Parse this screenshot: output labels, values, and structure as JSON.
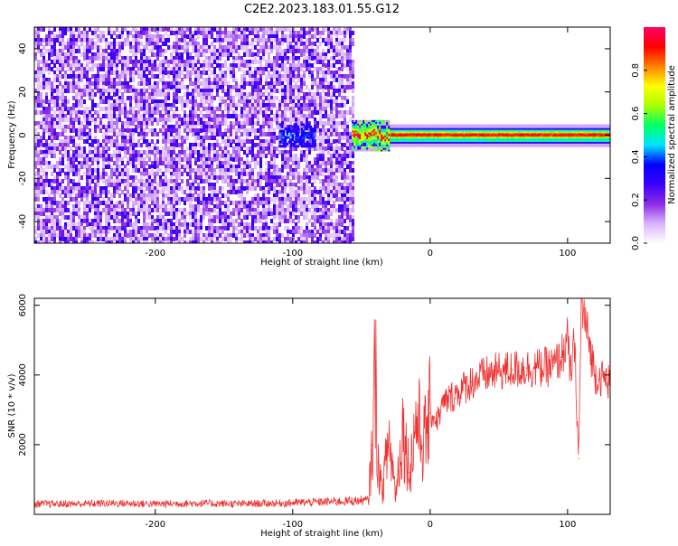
{
  "figure": {
    "title": "C2E2.2023.183.01.55.G12"
  },
  "chart_data": [
    {
      "type": "heatmap",
      "title": "C2E2.2023.183.01.55.G12",
      "xlabel": "Height of straight line (km)",
      "ylabel": "Frequency (Hz)",
      "xlim": [
        -288,
        131
      ],
      "ylim": [
        -50,
        50
      ],
      "x_ticks": [
        -200,
        -100,
        0,
        100
      ],
      "y_ticks": [
        -40,
        -20,
        0,
        20,
        40
      ],
      "colorbar": {
        "label": "Normalized spectral amplitude",
        "range": [
          0,
          1
        ],
        "ticks": [
          0.0,
          0.2,
          0.4,
          0.6,
          0.8
        ],
        "colormap": [
          "#ffffff",
          "#d9b3ff",
          "#8a2be2",
          "#3b00ff",
          "#0000ff",
          "#00e5ff",
          "#00ff66",
          "#aaff00",
          "#ffff00",
          "#ff8000",
          "#ff0000",
          "#ff0066"
        ]
      },
      "regions": [
        {
          "name": "noise",
          "x_range": [
            -288,
            -57
          ],
          "f_range": [
            -50,
            50
          ],
          "amplitude": 0.15
        },
        {
          "name": "weak signal",
          "x_range": [
            -110,
            -85
          ],
          "f_center": 0,
          "f_halfwidth": 5,
          "amplitude": 0.3
        },
        {
          "name": "signal",
          "x_range": [
            -57,
            131
          ],
          "f_center": 0,
          "f_halfwidth": 3,
          "amplitude": 0.9
        }
      ],
      "grid": false
    },
    {
      "type": "line",
      "xlabel": "Height of straight line (km)",
      "ylabel": "SNR (10 * v/v)",
      "xlim": [
        -288,
        131
      ],
      "ylim": [
        0,
        6200
      ],
      "x_ticks": [
        -200,
        -100,
        0,
        100
      ],
      "y_ticks": [
        2000,
        4000,
        6000
      ],
      "series": [
        {
          "color": "#ee3333",
          "x": [
            -288,
            -260,
            -230,
            -200,
            -170,
            -140,
            -110,
            -85,
            -60,
            -45,
            -42,
            -40,
            -38,
            -35,
            -30,
            -25,
            -20,
            -15,
            -10,
            -5,
            0,
            5,
            10,
            20,
            30,
            40,
            50,
            60,
            70,
            80,
            90,
            95,
            100,
            102,
            105,
            108,
            110,
            120,
            131
          ],
          "y": [
            300,
            300,
            320,
            300,
            320,
            300,
            320,
            350,
            380,
            400,
            2000,
            4400,
            1500,
            600,
            2200,
            600,
            2500,
            1200,
            2800,
            2000,
            2900,
            2700,
            3200,
            3500,
            3800,
            4000,
            4100,
            4150,
            4200,
            4200,
            4250,
            4500,
            5000,
            4000,
            4900,
            1600,
            6100,
            4000,
            3800
          ]
        }
      ],
      "grid": false
    }
  ]
}
